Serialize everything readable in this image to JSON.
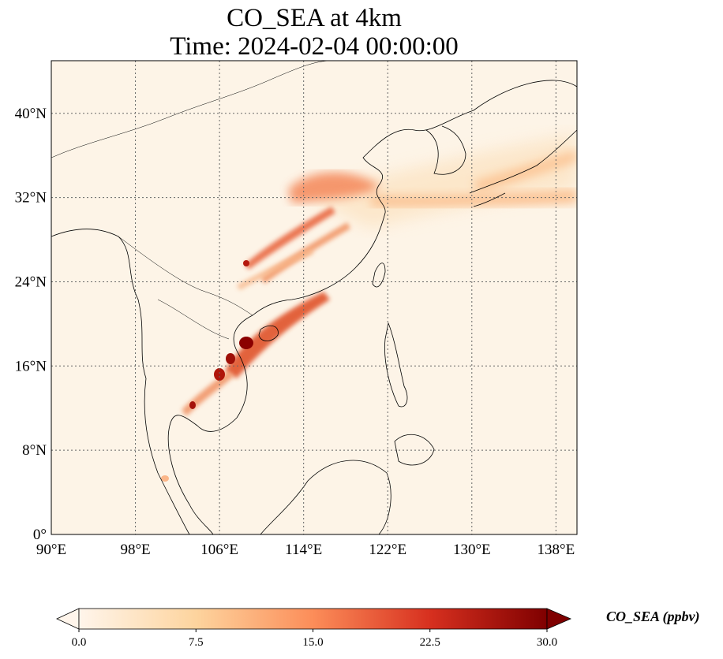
{
  "title": {
    "line1": "CO_SEA at 4km",
    "line2": "Time: 2024-02-04 00:00:00"
  },
  "colors": {
    "background": "#fdf4e7",
    "low": "#fff5eb",
    "mid": "#fd8d3c",
    "high": "#7f0000",
    "coast": "#000000",
    "grid": "#666666"
  },
  "map": {
    "lon_range": [
      90,
      140
    ],
    "lat_range": [
      0,
      45
    ],
    "lon_ticks": [
      "90°E",
      "98°E",
      "106°E",
      "114°E",
      "122°E",
      "130°E",
      "138°E"
    ],
    "lat_ticks": [
      "0°",
      "8°N",
      "16°N",
      "24°N",
      "32°N",
      "40°N"
    ],
    "gridlines": "dotted"
  },
  "colorbar": {
    "label": "CO_SEA (ppbv)",
    "ticks": [
      "0.0",
      "7.5",
      "15.0",
      "22.5",
      "30.0"
    ],
    "range": [
      0,
      30
    ],
    "extend": "both",
    "colormap": "OrRd"
  }
}
